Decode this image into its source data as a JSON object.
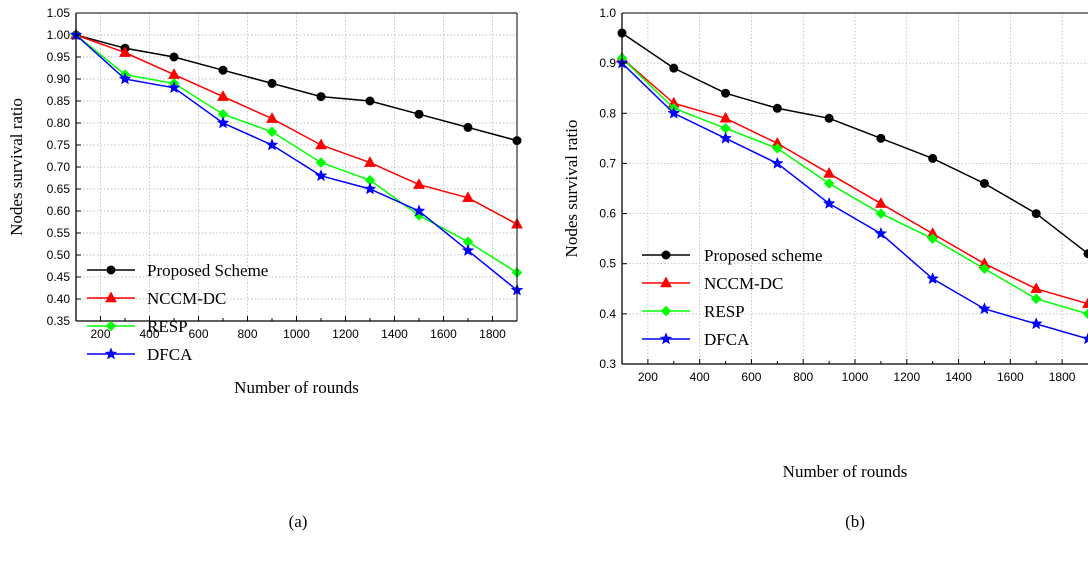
{
  "chart_data": [
    {
      "type": "line",
      "caption": "(a)",
      "xlabel": "Number of rounds",
      "ylabel": "Nodes survival ratio",
      "xlim": [
        100,
        1900
      ],
      "ylim": [
        0.35,
        1.05
      ],
      "xticks": [
        200,
        400,
        600,
        800,
        1000,
        1200,
        1400,
        1600,
        1800
      ],
      "xtick_labels": [
        "200",
        "400",
        "600",
        "800",
        "1000",
        "1200",
        "1400",
        "1600",
        "1800"
      ],
      "yticks": [
        0.35,
        0.4,
        0.45,
        0.5,
        0.55,
        0.6,
        0.65,
        0.7,
        0.75,
        0.8,
        0.85,
        0.9,
        0.95,
        1.0,
        1.05
      ],
      "ytick_labels": [
        "0.35",
        "0.40",
        "0.45",
        "0.50",
        "0.55",
        "0.60",
        "0.65",
        "0.70",
        "0.75",
        "0.80",
        "0.85",
        "0.90",
        "0.95",
        "1.00",
        "1.05"
      ],
      "grid": true,
      "legend_position": "bottom-left",
      "x": [
        100,
        300,
        500,
        700,
        900,
        1100,
        1300,
        1500,
        1700,
        1900
      ],
      "series": [
        {
          "name": "Proposed Scheme",
          "color": "#000000",
          "marker": "circle",
          "values": [
            1.0,
            0.97,
            0.95,
            0.92,
            0.89,
            0.86,
            0.85,
            0.82,
            0.79,
            0.76
          ]
        },
        {
          "name": "NCCM-DC",
          "color": "#ff0000",
          "marker": "triangle",
          "values": [
            1.0,
            0.96,
            0.91,
            0.86,
            0.81,
            0.75,
            0.71,
            0.66,
            0.63,
            0.57
          ]
        },
        {
          "name": "RESP",
          "color": "#00ff00",
          "marker": "diamond",
          "values": [
            1.0,
            0.91,
            0.89,
            0.82,
            0.78,
            0.71,
            0.67,
            0.59,
            0.53,
            0.46
          ]
        },
        {
          "name": "DFCA",
          "color": "#0000ff",
          "marker": "star",
          "values": [
            1.0,
            0.9,
            0.88,
            0.8,
            0.75,
            0.68,
            0.65,
            0.6,
            0.51,
            0.42
          ]
        }
      ]
    },
    {
      "type": "line",
      "caption": "(b)",
      "xlabel": "Number of rounds",
      "ylabel": "Nodes survival ratio",
      "xlim": [
        100,
        1900
      ],
      "ylim": [
        0.3,
        1.0
      ],
      "xticks": [
        200,
        400,
        600,
        800,
        1000,
        1200,
        1400,
        1600,
        1800
      ],
      "xtick_labels": [
        "200",
        "400",
        "600",
        "800",
        "1000",
        "1200",
        "1400",
        "1600",
        "1800"
      ],
      "yticks": [
        0.3,
        0.4,
        0.5,
        0.6,
        0.7,
        0.8,
        0.9,
        1.0
      ],
      "ytick_labels": [
        "0.3",
        "0.4",
        "0.5",
        "0.6",
        "0.7",
        "0.8",
        "0.9",
        "1.0"
      ],
      "grid": true,
      "legend_position": "bottom-left",
      "x": [
        100,
        300,
        500,
        700,
        900,
        1100,
        1300,
        1500,
        1700,
        1900
      ],
      "series": [
        {
          "name": "Proposed scheme",
          "color": "#000000",
          "marker": "circle",
          "values": [
            0.96,
            0.89,
            0.84,
            0.81,
            0.79,
            0.75,
            0.71,
            0.66,
            0.6,
            0.52
          ]
        },
        {
          "name": "NCCM-DC",
          "color": "#ff0000",
          "marker": "triangle",
          "values": [
            0.91,
            0.82,
            0.79,
            0.74,
            0.68,
            0.62,
            0.56,
            0.5,
            0.45,
            0.42
          ]
        },
        {
          "name": "RESP",
          "color": "#00ff00",
          "marker": "diamond",
          "values": [
            0.91,
            0.81,
            0.77,
            0.73,
            0.66,
            0.6,
            0.55,
            0.49,
            0.43,
            0.4
          ]
        },
        {
          "name": "DFCA",
          "color": "#0000ff",
          "marker": "star",
          "values": [
            0.9,
            0.8,
            0.75,
            0.7,
            0.62,
            0.56,
            0.47,
            0.41,
            0.38,
            0.35
          ]
        }
      ]
    }
  ]
}
